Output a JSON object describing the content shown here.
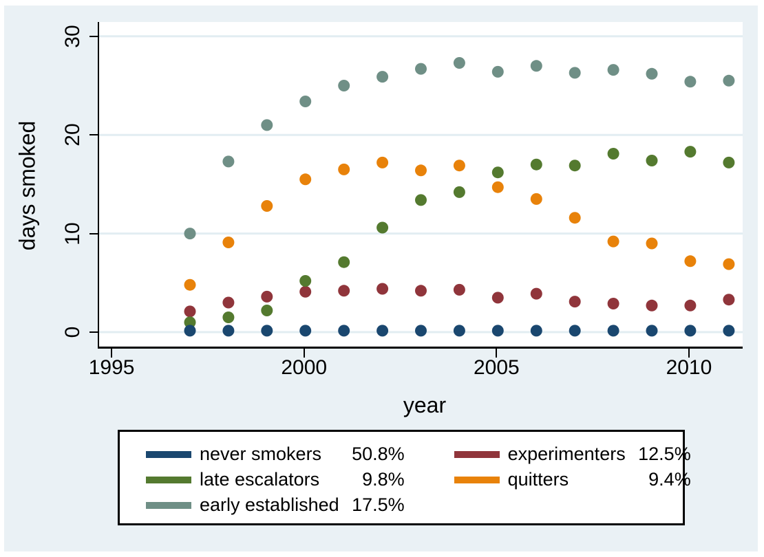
{
  "chart_data": {
    "type": "scatter",
    "title": "",
    "xlabel": "year",
    "ylabel": "days smoked",
    "x_ticks": [
      1995,
      2000,
      2005,
      2010
    ],
    "x_tick_labels": [
      "1995",
      "2000",
      "2005",
      "2010"
    ],
    "y_ticks": [
      0,
      10,
      20,
      30
    ],
    "y_tick_labels": [
      "0",
      "10",
      "20",
      "30"
    ],
    "xlim": [
      1994.64,
      2011.36
    ],
    "ylim": [
      -1.46,
      31.45
    ],
    "grid": "horizontal-only",
    "legend_position": "below-plot",
    "marker": "filled-circle",
    "years": [
      1997,
      1998,
      1999,
      2000,
      2001,
      2002,
      2003,
      2004,
      2005,
      2006,
      2007,
      2008,
      2009,
      2010,
      2011
    ],
    "series": [
      {
        "name": "early established",
        "share": "17.5%",
        "color": "#6f8f86",
        "values": [
          10.0,
          17.3,
          21.0,
          23.4,
          25.0,
          25.9,
          26.7,
          27.3,
          26.4,
          27.0,
          26.3,
          26.6,
          26.2,
          25.4,
          25.5
        ]
      },
      {
        "name": "quitters",
        "share": "9.4%",
        "color": "#e8820a",
        "values": [
          4.8,
          9.1,
          12.8,
          15.5,
          16.5,
          17.2,
          16.4,
          16.9,
          14.7,
          13.5,
          11.6,
          9.2,
          9.0,
          7.2,
          6.9
        ]
      },
      {
        "name": "experimenters",
        "share": "12.5%",
        "color": "#90353b",
        "values": [
          2.1,
          3.0,
          3.6,
          4.1,
          4.2,
          4.4,
          4.2,
          4.3,
          3.5,
          3.9,
          3.1,
          2.9,
          2.7,
          2.7,
          3.3
        ]
      },
      {
        "name": "late escalators",
        "share": "9.8%",
        "color": "#547a2f",
        "values": [
          1.0,
          1.5,
          2.2,
          5.2,
          7.1,
          10.6,
          13.4,
          14.2,
          16.2,
          17.0,
          16.9,
          18.1,
          17.4,
          18.3,
          17.2
        ]
      },
      {
        "name": "never smokers",
        "share": "50.8%",
        "color": "#1a476f",
        "values": [
          0.15,
          0.15,
          0.15,
          0.15,
          0.15,
          0.15,
          0.15,
          0.15,
          0.15,
          0.15,
          0.15,
          0.15,
          0.15,
          0.15,
          0.15
        ]
      }
    ]
  },
  "legend": {
    "entries": [
      {
        "label": "never smokers",
        "pct": "50.8%",
        "color": "#1a476f"
      },
      {
        "label": "late escalators",
        "pct": "9.8%",
        "color": "#547a2f"
      },
      {
        "label": "early established",
        "pct": "17.5%",
        "color": "#6f8f86"
      },
      {
        "label": "experimenters",
        "pct": "12.5%",
        "color": "#90353b"
      },
      {
        "label": "quitters",
        "pct": "9.4%",
        "color": "#e8820a"
      }
    ]
  },
  "colors": {
    "canvas_background": "#eaf1f5",
    "plot_background": "#ffffff",
    "gridline": "#e2edf2",
    "axis_line": "#000000",
    "text": "#000000"
  }
}
